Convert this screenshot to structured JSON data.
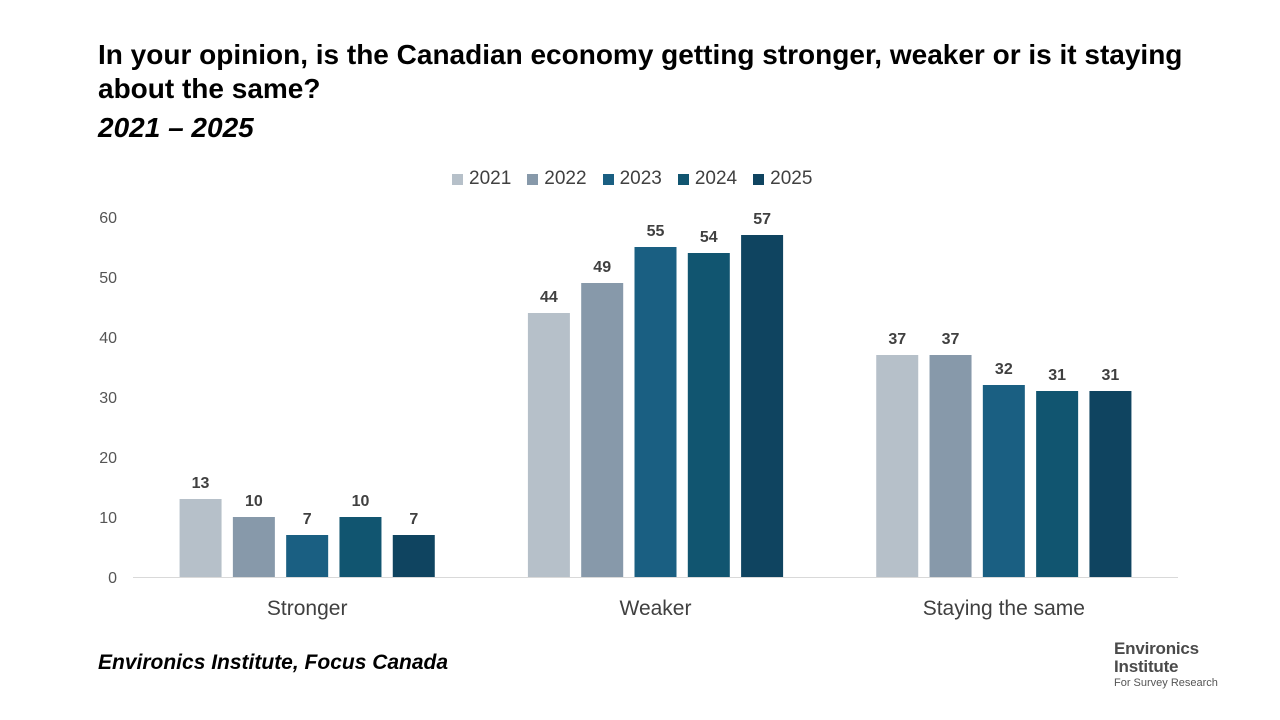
{
  "title": "In your opinion, is the Canadian economy getting stronger, weaker or is it staying about the same?",
  "subtitle": "2021 – 2025",
  "source": "Environics Institute, Focus Canada",
  "logo": {
    "line1": "Environics",
    "line2": "Institute",
    "line3": "For Survey Research"
  },
  "colors": {
    "2021": "#b6c0c9",
    "2022": "#8799aa",
    "2023": "#1a5f82",
    "2024": "#115570",
    "2025": "#0f4460"
  },
  "chart_data": {
    "type": "bar",
    "categories": [
      "Stronger",
      "Weaker",
      "Staying the same"
    ],
    "series": [
      {
        "name": "2021",
        "values": [
          13,
          44,
          37
        ]
      },
      {
        "name": "2022",
        "values": [
          10,
          49,
          37
        ]
      },
      {
        "name": "2023",
        "values": [
          7,
          55,
          32
        ]
      },
      {
        "name": "2024",
        "values": [
          10,
          54,
          31
        ]
      },
      {
        "name": "2025",
        "values": [
          7,
          57,
          31
        ]
      }
    ],
    "ylim": [
      0,
      60
    ],
    "yticks": [
      0,
      10,
      20,
      30,
      40,
      50,
      60
    ],
    "legend": "top-center",
    "grid": false,
    "data_labels": true
  }
}
